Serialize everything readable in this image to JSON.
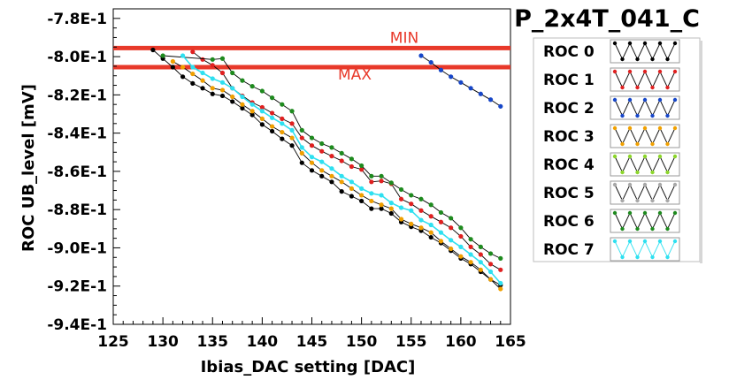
{
  "chart_data": {
    "type": "line",
    "title": "P_2x4T_041_C",
    "xlabel": "Ibias_DAC setting [DAC]",
    "ylabel": "ROC UB_level [mV]",
    "xlim": [
      125,
      165
    ],
    "ylim": [
      -0.94,
      -0.775
    ],
    "x_ticks": [
      125,
      130,
      135,
      140,
      145,
      150,
      155,
      160,
      165
    ],
    "x_tick_labels": [
      "125",
      "130",
      "135",
      "140",
      "145",
      "150",
      "155",
      "160",
      "165"
    ],
    "y_ticks": [
      -0.78,
      -0.8,
      -0.82,
      -0.84,
      -0.86,
      -0.88,
      -0.9,
      -0.92,
      -0.94
    ],
    "y_tick_labels": [
      "-7.8E-1",
      "-8.0E-1",
      "-8.2E-1",
      "-8.4E-1",
      "-8.6E-1",
      "-8.8E-1",
      "-9.0E-1",
      "-9.2E-1",
      "-9.4E-1"
    ],
    "grid": false,
    "legend_position": "right",
    "reference_lines": [
      {
        "label": "MIN",
        "y": -0.7955,
        "color": "#e8392a"
      },
      {
        "label": "MAX",
        "y": -0.8055,
        "color": "#e8392a"
      }
    ],
    "series": [
      {
        "name": "ROC 0",
        "color": "#000000",
        "x": [
          129,
          130,
          131,
          132,
          133,
          134,
          135,
          136,
          137,
          138,
          139,
          140,
          141,
          142,
          143,
          144,
          145,
          146,
          147,
          148,
          149,
          150,
          151,
          152,
          153,
          154,
          155,
          156,
          157,
          158,
          159,
          160,
          161,
          162,
          163,
          164
        ],
        "y": [
          -0.7965,
          -0.801,
          -0.8055,
          -0.8105,
          -0.814,
          -0.8165,
          -0.8195,
          -0.8205,
          -0.8235,
          -0.827,
          -0.8305,
          -0.8355,
          -0.839,
          -0.843,
          -0.8465,
          -0.8555,
          -0.8595,
          -0.8625,
          -0.8655,
          -0.8705,
          -0.873,
          -0.8755,
          -0.8795,
          -0.8795,
          -0.882,
          -0.8865,
          -0.889,
          -0.891,
          -0.8945,
          -0.8975,
          -0.9015,
          -0.9055,
          -0.9085,
          -0.9125,
          -0.9165,
          -0.9195
        ]
      },
      {
        "name": "ROC 1",
        "color": "#e02020",
        "x": [
          133,
          134,
          135,
          136,
          137,
          138,
          139,
          140,
          141,
          142,
          143,
          144,
          145,
          146,
          147,
          148,
          149,
          150,
          151,
          152,
          153,
          154,
          155,
          156,
          157,
          158,
          159,
          160,
          161,
          162,
          163,
          164
        ],
        "y": [
          -0.7975,
          -0.8015,
          -0.8045,
          -0.8085,
          -0.8165,
          -0.8205,
          -0.824,
          -0.8265,
          -0.8295,
          -0.8325,
          -0.835,
          -0.8425,
          -0.8465,
          -0.8495,
          -0.852,
          -0.8545,
          -0.8575,
          -0.859,
          -0.8655,
          -0.865,
          -0.8665,
          -0.8745,
          -0.877,
          -0.8805,
          -0.8835,
          -0.8865,
          -0.8895,
          -0.894,
          -0.8995,
          -0.9035,
          -0.9085,
          -0.9115
        ]
      },
      {
        "name": "ROC 2",
        "color": "#1646c8",
        "x": [
          156,
          157,
          158,
          159,
          160,
          161,
          162,
          163,
          164
        ],
        "y": [
          -0.7995,
          -0.803,
          -0.807,
          -0.8105,
          -0.8135,
          -0.8165,
          -0.8195,
          -0.8225,
          -0.826
        ]
      },
      {
        "name": "ROC 3",
        "color": "#f0a000",
        "x": [
          131,
          132,
          133,
          134,
          135,
          136,
          137,
          138,
          139,
          140,
          141,
          142,
          143,
          144,
          145,
          146,
          147,
          148,
          149,
          150,
          151,
          152,
          153,
          154,
          155,
          156,
          157,
          158,
          159,
          160,
          161,
          162,
          163,
          164
        ],
        "y": [
          -0.8025,
          -0.8055,
          -0.809,
          -0.8125,
          -0.8165,
          -0.8175,
          -0.821,
          -0.825,
          -0.8285,
          -0.8325,
          -0.8365,
          -0.8395,
          -0.8425,
          -0.8505,
          -0.8555,
          -0.8595,
          -0.8625,
          -0.8655,
          -0.869,
          -0.8725,
          -0.8755,
          -0.8775,
          -0.8795,
          -0.885,
          -0.8875,
          -0.8895,
          -0.892,
          -0.8965,
          -0.9005,
          -0.9045,
          -0.9075,
          -0.9115,
          -0.9165,
          -0.9215
        ]
      },
      {
        "name": "ROC 4",
        "color": "#8cd62a",
        "x": [],
        "y": []
      },
      {
        "name": "ROC 5",
        "color": "#a8a8a8",
        "x": [],
        "y": []
      },
      {
        "name": "ROC 6",
        "color": "#1e8a1e",
        "x": [
          130,
          135,
          136,
          137,
          138,
          139,
          140,
          141,
          142,
          143,
          144,
          145,
          146,
          147,
          148,
          149,
          150,
          151,
          152,
          153,
          154,
          155,
          156,
          157,
          158,
          159,
          160,
          161,
          162,
          163,
          164
        ],
        "y": [
          -0.7995,
          -0.8015,
          -0.801,
          -0.8085,
          -0.8125,
          -0.8155,
          -0.818,
          -0.8215,
          -0.825,
          -0.8285,
          -0.8385,
          -0.8425,
          -0.8455,
          -0.8475,
          -0.8505,
          -0.8535,
          -0.857,
          -0.8625,
          -0.8625,
          -0.866,
          -0.8695,
          -0.8725,
          -0.8745,
          -0.8775,
          -0.8815,
          -0.8845,
          -0.8895,
          -0.8955,
          -0.8995,
          -0.903,
          -0.9055
        ]
      },
      {
        "name": "ROC 7",
        "color": "#2ee0f0",
        "x": [
          132,
          133,
          134,
          135,
          136,
          137,
          138,
          139,
          140,
          141,
          142,
          143,
          144,
          145,
          146,
          147,
          148,
          149,
          150,
          151,
          152,
          153,
          154,
          155,
          156,
          157,
          158,
          159,
          160,
          161,
          162,
          163,
          164
        ],
        "y": [
          -0.7995,
          -0.8055,
          -0.8085,
          -0.8115,
          -0.8135,
          -0.8165,
          -0.821,
          -0.825,
          -0.8285,
          -0.832,
          -0.835,
          -0.8385,
          -0.8475,
          -0.8525,
          -0.855,
          -0.8585,
          -0.8625,
          -0.8655,
          -0.869,
          -0.8715,
          -0.8725,
          -0.8765,
          -0.879,
          -0.8805,
          -0.8855,
          -0.888,
          -0.892,
          -0.896,
          -0.8995,
          -0.9035,
          -0.9075,
          -0.9125,
          -0.9185
        ]
      }
    ]
  }
}
